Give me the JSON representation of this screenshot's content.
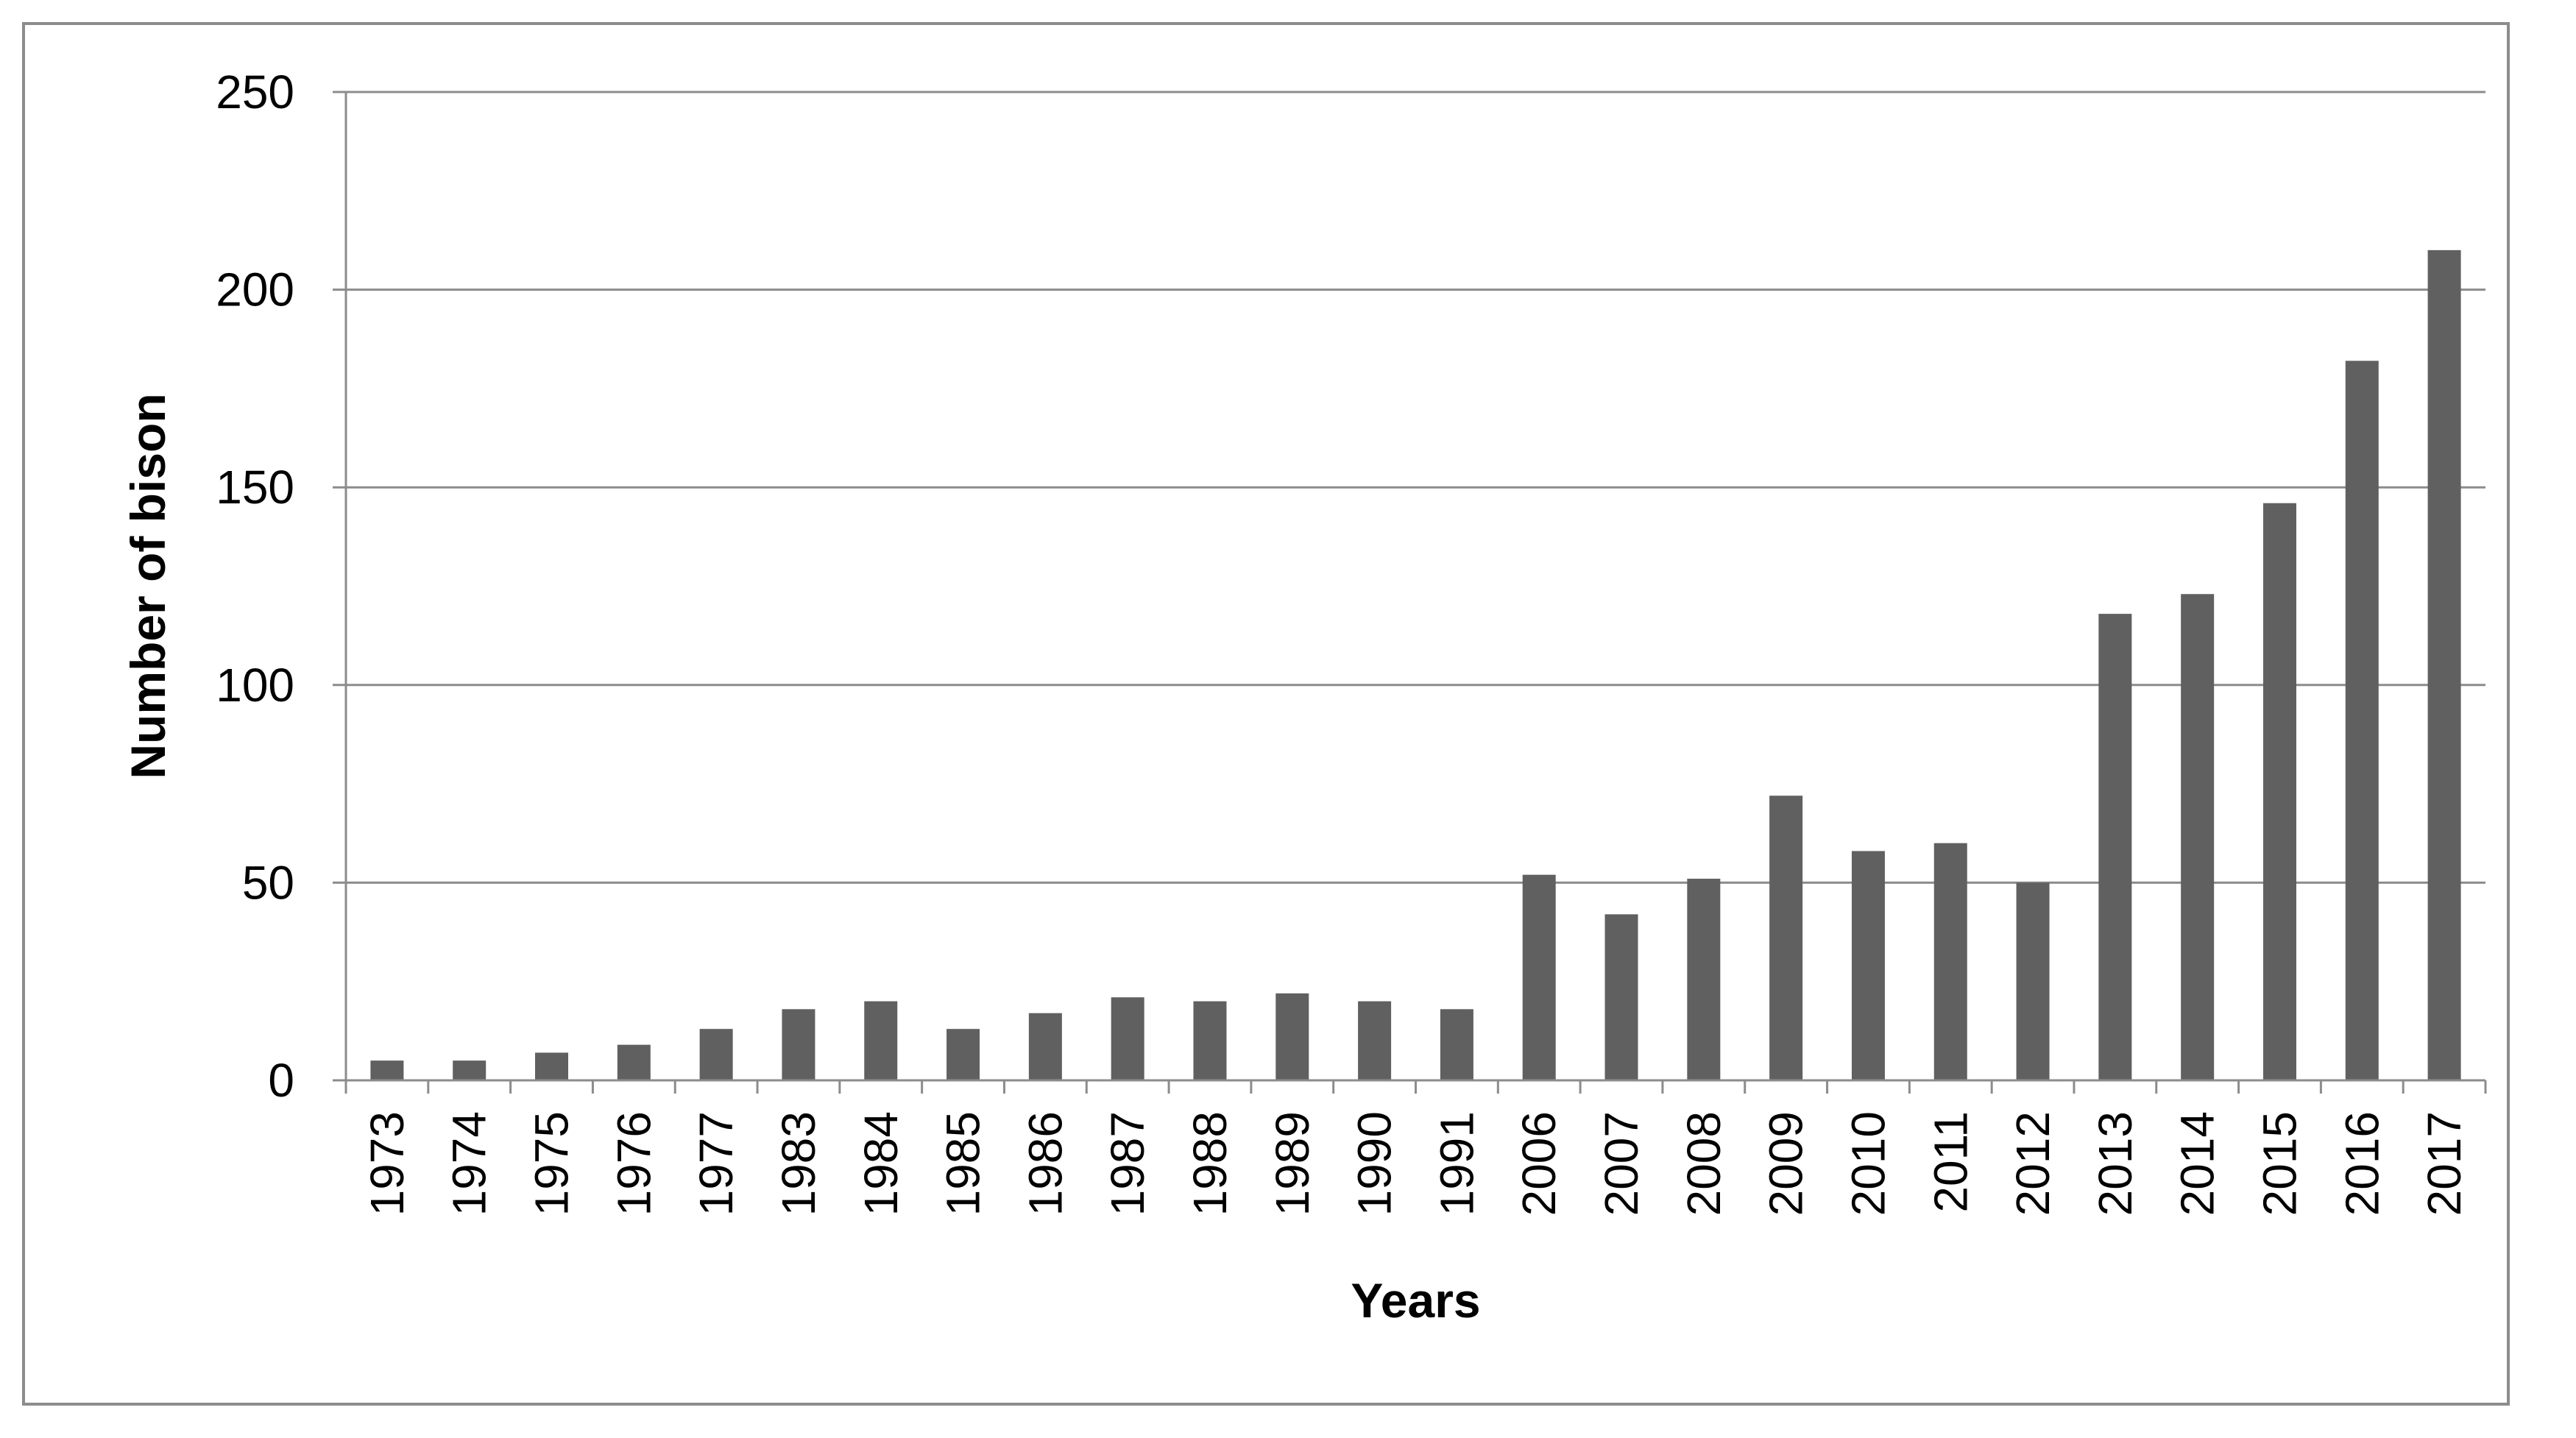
{
  "chart_data": {
    "type": "bar",
    "title": "",
    "xlabel": "Years",
    "ylabel": "Number of bison",
    "categories": [
      "1973",
      "1974",
      "1975",
      "1976",
      "1977",
      "1983",
      "1984",
      "1985",
      "1986",
      "1987",
      "1988",
      "1989",
      "1990",
      "1991",
      "2006",
      "2007",
      "2008",
      "2009",
      "2010",
      "2011",
      "2012",
      "2013",
      "2014",
      "2015",
      "2016",
      "2017"
    ],
    "values": [
      5,
      5,
      7,
      9,
      13,
      18,
      20,
      13,
      17,
      21,
      20,
      22,
      20,
      18,
      52,
      42,
      51,
      72,
      58,
      60,
      50,
      118,
      123,
      146,
      182,
      210
    ],
    "ylim": [
      0,
      250
    ],
    "yticks": [
      0,
      50,
      100,
      150,
      200,
      250
    ],
    "grid": true,
    "legend": "none",
    "bar_color": "#606060",
    "grid_color": "#8c8c8c",
    "axis_color": "#8c8c8c"
  }
}
